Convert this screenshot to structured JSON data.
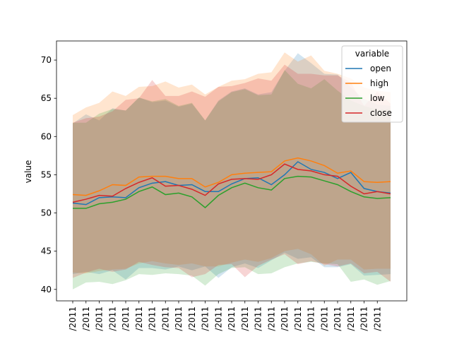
{
  "chart_data": {
    "type": "line",
    "xlabel": "",
    "ylabel": "value",
    "ylim": [
      38.5,
      72.5
    ],
    "yticks": [
      40,
      45,
      50,
      55,
      60,
      65,
      70
    ],
    "x_tick_labels": [
      "/2011",
      "/2011",
      "/2011",
      "/2011",
      "/2011",
      "/2011",
      "/2011",
      "/2011",
      "/2011",
      "/2011",
      "/2011",
      "/2011",
      "/2011",
      "/2011",
      "/2011",
      "/2011",
      "/2011",
      "/2011",
      "/2011",
      "/2011",
      "/2011",
      "/2011",
      "/2011",
      "/2011"
    ],
    "grid": false,
    "legend": {
      "title": "variable",
      "placement": "top-right"
    },
    "band": "confidence interval (shaded)",
    "series": [
      {
        "name": "open",
        "color": "#1f77b4",
        "values": [
          51.3,
          51.1,
          52.0,
          52.1,
          52.0,
          53.3,
          53.9,
          54.1,
          53.6,
          53.7,
          52.8,
          52.8,
          53.8,
          54.5,
          54.6,
          53.7,
          55.0,
          56.7,
          55.7,
          55.3,
          54.5,
          55.3,
          53.2,
          52.8,
          52.6
        ],
        "upper": [
          61.7,
          62.9,
          62.1,
          63.7,
          63.4,
          65.1,
          64.5,
          64.7,
          63.9,
          64.3,
          62.1,
          64.7,
          65.9,
          66.3,
          65.5,
          65.8,
          68.6,
          70.9,
          69.6,
          68.2,
          68.1,
          66.4,
          64.9,
          64.2,
          64.0
        ],
        "lower": [
          42.0,
          42.3,
          42.0,
          42.5,
          41.3,
          42.8,
          42.8,
          42.6,
          43.0,
          42.5,
          43.0,
          41.5,
          42.9,
          43.4,
          42.8,
          43.8,
          44.8,
          44.0,
          44.2,
          42.9,
          42.9,
          43.3,
          41.8,
          41.9,
          42.0
        ]
      },
      {
        "name": "high",
        "color": "#ff7f0e",
        "values": [
          52.4,
          52.3,
          52.9,
          53.7,
          53.6,
          54.7,
          54.8,
          54.8,
          54.5,
          54.5,
          53.4,
          54.0,
          55.0,
          55.2,
          55.3,
          55.4,
          56.8,
          57.2,
          56.8,
          56.2,
          55.2,
          55.5,
          54.1,
          54.0,
          54.1
        ],
        "upper": [
          62.8,
          63.8,
          64.4,
          65.9,
          65.3,
          66.5,
          66.6,
          67.2,
          66.4,
          66.8,
          65.5,
          66.5,
          67.3,
          67.5,
          68.2,
          68.4,
          71.0,
          69.8,
          70.6,
          68.6,
          68.2,
          67.6,
          66.4,
          66.0,
          65.8
        ],
        "lower": [
          42.2,
          42.1,
          42.4,
          42.6,
          42.7,
          43.4,
          43.7,
          43.4,
          43.2,
          43.4,
          43.0,
          43.0,
          43.5,
          43.9,
          43.6,
          44.1,
          45.0,
          45.3,
          44.6,
          43.1,
          43.9,
          43.9,
          42.6,
          42.7,
          42.7
        ]
      },
      {
        "name": "low",
        "color": "#2ca02c",
        "values": [
          50.6,
          50.6,
          51.2,
          51.4,
          51.8,
          52.8,
          53.4,
          52.4,
          52.6,
          52.1,
          50.7,
          52.3,
          53.3,
          53.9,
          53.3,
          53.0,
          54.5,
          54.8,
          54.7,
          54.2,
          53.7,
          52.8,
          52.1,
          51.9,
          52.0
        ],
        "upper": [
          61.8,
          61.8,
          63.0,
          63.6,
          63.4,
          65.1,
          64.6,
          64.9,
          64.0,
          64.4,
          62.1,
          64.6,
          65.8,
          66.2,
          65.4,
          65.5,
          68.7,
          66.9,
          66.3,
          67.5,
          66.0,
          64.7,
          64.0,
          63.5,
          63.6
        ],
        "lower": [
          40.0,
          40.9,
          41.0,
          40.7,
          41.2,
          42.0,
          41.9,
          42.1,
          42.0,
          41.8,
          40.5,
          42.0,
          42.8,
          42.9,
          42.0,
          42.1,
          42.9,
          43.4,
          43.6,
          43.4,
          43.3,
          41.0,
          41.3,
          40.6,
          41.1
        ]
      },
      {
        "name": "close",
        "color": "#d62728",
        "values": [
          51.4,
          51.8,
          52.3,
          52.2,
          53.2,
          54.0,
          54.6,
          53.5,
          53.6,
          53.1,
          52.3,
          53.8,
          54.4,
          54.5,
          54.4,
          55.0,
          56.4,
          55.7,
          55.5,
          55.0,
          54.8,
          53.5,
          52.5,
          52.8,
          52.5
        ],
        "upper": [
          61.8,
          62.4,
          62.6,
          63.3,
          64.8,
          65.0,
          67.4,
          65.3,
          65.3,
          65.9,
          65.2,
          66.5,
          66.6,
          67.0,
          67.6,
          67.3,
          69.4,
          68.2,
          68.2,
          68.0,
          68.0,
          67.1,
          64.0,
          65.9,
          64.3
        ],
        "lower": [
          41.5,
          42.2,
          42.7,
          42.3,
          42.6,
          43.6,
          43.2,
          42.9,
          42.8,
          41.6,
          42.0,
          43.2,
          43.3,
          41.6,
          43.1,
          43.9,
          44.6,
          43.3,
          43.7,
          43.3,
          43.0,
          43.4,
          42.1,
          42.3,
          41.0
        ]
      }
    ]
  }
}
